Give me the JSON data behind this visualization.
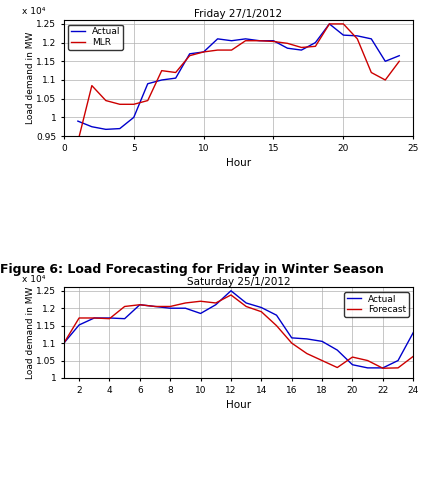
{
  "chart1": {
    "title": "Friday 27/1/2012",
    "xlabel": "Hour",
    "ylabel": "Load demand in MW",
    "xlim": [
      0,
      25
    ],
    "ylim": [
      9500,
      12600
    ],
    "yticks": [
      9500,
      10000,
      10500,
      11000,
      11500,
      12000,
      12500
    ],
    "ytick_labels": [
      "0.95",
      "1",
      "1.05",
      "1.1",
      "1.15",
      "1.2",
      "1.25"
    ],
    "xticks": [
      0,
      5,
      10,
      15,
      20,
      25
    ],
    "actual_x": [
      1,
      2,
      3,
      4,
      5,
      6,
      7,
      8,
      9,
      10,
      11,
      12,
      13,
      14,
      15,
      16,
      17,
      18,
      19,
      20,
      21,
      22,
      23,
      24
    ],
    "actual_y": [
      9900,
      9750,
      9680,
      9700,
      10000,
      10900,
      11000,
      11050,
      11700,
      11750,
      12100,
      12050,
      12100,
      12050,
      12050,
      11850,
      11800,
      12000,
      12500,
      12200,
      12180,
      12100,
      11500,
      11650
    ],
    "mlr_x": [
      1,
      2,
      3,
      4,
      5,
      6,
      7,
      8,
      9,
      10,
      11,
      12,
      13,
      14,
      15,
      16,
      17,
      18,
      19,
      20,
      21,
      22,
      23,
      24
    ],
    "mlr_y": [
      9350,
      10850,
      10450,
      10350,
      10350,
      10450,
      11250,
      11200,
      11650,
      11750,
      11800,
      11800,
      12050,
      12050,
      12030,
      11980,
      11870,
      11900,
      12500,
      12500,
      12100,
      11200,
      11000,
      11500
    ],
    "actual_color": "#0000cc",
    "mlr_color": "#cc0000",
    "legend_labels": [
      "Actual",
      "MLR"
    ],
    "bg_color": "#ffffff",
    "grid_color": "#b0b0b0",
    "exponent_label": "x 10⁴"
  },
  "caption": "Figure 6: Load Forecasting for Friday in Winter Season",
  "caption_fontsize": 9,
  "chart2": {
    "title": "Saturday 25/1/2012",
    "xlabel": "Hour",
    "ylabel": "Load demand in MW",
    "xlim": [
      1,
      24
    ],
    "ylim": [
      10000,
      12600
    ],
    "yticks": [
      10000,
      10500,
      11000,
      11500,
      12000,
      12500
    ],
    "ytick_labels": [
      "1",
      "1.05",
      "1.1",
      "1.15",
      "1.2",
      "1.25"
    ],
    "xticks": [
      2,
      4,
      6,
      8,
      10,
      12,
      14,
      16,
      18,
      20,
      22,
      24
    ],
    "actual_x": [
      1,
      2,
      3,
      4,
      5,
      6,
      7,
      8,
      9,
      10,
      11,
      12,
      13,
      14,
      15,
      16,
      17,
      18,
      19,
      20,
      21,
      22,
      23,
      24
    ],
    "actual_y": [
      11000,
      11520,
      11720,
      11720,
      11700,
      12100,
      12050,
      12000,
      12000,
      11850,
      12100,
      12500,
      12150,
      12020,
      11800,
      11150,
      11120,
      11050,
      10800,
      10380,
      10290,
      10290,
      10500,
      11300
    ],
    "forecast_x": [
      1,
      2,
      3,
      4,
      5,
      6,
      7,
      8,
      9,
      10,
      11,
      12,
      13,
      14,
      15,
      16,
      17,
      18,
      19,
      20,
      21,
      22,
      23,
      24
    ],
    "forecast_y": [
      11000,
      11720,
      11720,
      11700,
      12050,
      12100,
      12050,
      12050,
      12150,
      12200,
      12150,
      12380,
      12050,
      11900,
      11500,
      11000,
      10700,
      10500,
      10300,
      10600,
      10500,
      10280,
      10290,
      10620
    ],
    "actual_color": "#0000cc",
    "forecast_color": "#cc0000",
    "legend_labels": [
      "Actual",
      "Forecast"
    ],
    "bg_color": "#ffffff",
    "grid_color": "#b0b0b0",
    "exponent_label": "x 10⁴"
  }
}
